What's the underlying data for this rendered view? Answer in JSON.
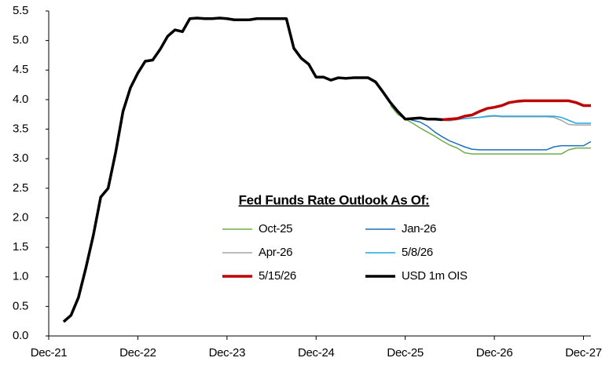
{
  "chart_data": {
    "type": "line",
    "legend_title": "Fed Funds Rate Outlook As Of:",
    "x": [
      "2022-02",
      "2022-03",
      "2022-04",
      "2022-05",
      "2022-06",
      "2022-07",
      "2022-08",
      "2022-09",
      "2022-10",
      "2022-11",
      "2022-12",
      "2023-01",
      "2023-02",
      "2023-03",
      "2023-04",
      "2023-05",
      "2023-06",
      "2023-07",
      "2023-08",
      "2023-09",
      "2023-10",
      "2023-11",
      "2023-12",
      "2024-01",
      "2024-02",
      "2024-03",
      "2024-04",
      "2024-05",
      "2024-06",
      "2024-07",
      "2024-08",
      "2024-09",
      "2024-10",
      "2024-11",
      "2024-12",
      "2025-01",
      "2025-02",
      "2025-03",
      "2025-04",
      "2025-05",
      "2025-06",
      "2025-07",
      "2025-08",
      "2025-09",
      "2025-10",
      "2025-11",
      "2025-12",
      "2026-01",
      "2026-02",
      "2026-03",
      "2026-04",
      "2026-05",
      "2026-06",
      "2026-07",
      "2026-08",
      "2026-09",
      "2026-10",
      "2026-11",
      "2026-12",
      "2027-01",
      "2027-02",
      "2027-03",
      "2027-04",
      "2027-05",
      "2027-06",
      "2027-07",
      "2027-08",
      "2027-09",
      "2027-10",
      "2027-11",
      "2027-12",
      "2028-01"
    ],
    "xlim": [
      "2021-12",
      "2028-01"
    ],
    "xticks": [
      {
        "value": "2021-12",
        "label": "Dec-21"
      },
      {
        "value": "2022-12",
        "label": "Dec-22"
      },
      {
        "value": "2023-12",
        "label": "Dec-23"
      },
      {
        "value": "2024-12",
        "label": "Dec-24"
      },
      {
        "value": "2025-12",
        "label": "Dec-25"
      },
      {
        "value": "2026-12",
        "label": "Dec-26"
      },
      {
        "value": "2027-12",
        "label": "Dec-27"
      }
    ],
    "ylim": [
      0,
      5.5
    ],
    "yticks": [
      {
        "value": 0,
        "label": "0.0"
      },
      0.5,
      {
        "value": 1,
        "label": "1.0"
      },
      1.5,
      {
        "value": 2,
        "label": "2.0"
      },
      2.5,
      {
        "value": 3,
        "label": "3.0"
      },
      3.5,
      {
        "value": 4,
        "label": "4.0"
      },
      4.5,
      {
        "value": 5,
        "label": "5.0"
      },
      5.5
    ],
    "grid": false,
    "series": [
      {
        "name": "Oct-25",
        "color": "#70ad47",
        "width": 1.5,
        "values": [
          null,
          null,
          null,
          null,
          null,
          null,
          null,
          null,
          null,
          null,
          null,
          null,
          null,
          null,
          null,
          null,
          null,
          null,
          null,
          null,
          null,
          null,
          null,
          null,
          null,
          null,
          null,
          null,
          null,
          null,
          null,
          null,
          null,
          null,
          null,
          null,
          null,
          null,
          null,
          null,
          null,
          null,
          null,
          null,
          3.9,
          3.75,
          3.67,
          3.6,
          3.52,
          3.45,
          3.38,
          3.3,
          3.23,
          3.18,
          3.1,
          3.08,
          3.08,
          3.08,
          3.08,
          3.08,
          3.08,
          3.08,
          3.08,
          3.08,
          3.08,
          3.08,
          3.08,
          3.08,
          3.15,
          3.18,
          3.18,
          3.18
        ]
      },
      {
        "name": "Jan-26",
        "color": "#1f6fbf",
        "width": 1.5,
        "values": [
          null,
          null,
          null,
          null,
          null,
          null,
          null,
          null,
          null,
          null,
          null,
          null,
          null,
          null,
          null,
          null,
          null,
          null,
          null,
          null,
          null,
          null,
          null,
          null,
          null,
          null,
          null,
          null,
          null,
          null,
          null,
          null,
          null,
          null,
          null,
          null,
          null,
          null,
          null,
          null,
          null,
          null,
          null,
          null,
          null,
          null,
          3.68,
          3.65,
          3.62,
          3.55,
          3.45,
          3.37,
          3.3,
          3.25,
          3.2,
          3.16,
          3.15,
          3.15,
          3.15,
          3.15,
          3.15,
          3.15,
          3.15,
          3.15,
          3.15,
          3.15,
          3.2,
          3.22,
          3.22,
          3.22,
          3.22,
          3.29
        ]
      },
      {
        "name": "Apr-26",
        "color": "#a6a6a6",
        "width": 1.5,
        "values": [
          null,
          null,
          null,
          null,
          null,
          null,
          null,
          null,
          null,
          null,
          null,
          null,
          null,
          null,
          null,
          null,
          null,
          null,
          null,
          null,
          null,
          null,
          null,
          null,
          null,
          null,
          null,
          null,
          null,
          null,
          null,
          null,
          null,
          null,
          null,
          null,
          null,
          null,
          null,
          null,
          null,
          null,
          null,
          null,
          null,
          null,
          null,
          null,
          null,
          null,
          3.67,
          3.65,
          3.64,
          3.66,
          3.68,
          3.69,
          3.7,
          3.71,
          3.72,
          3.71,
          3.71,
          3.71,
          3.71,
          3.71,
          3.71,
          3.71,
          3.7,
          3.65,
          3.58,
          3.57,
          3.57,
          3.57
        ]
      },
      {
        "name": "5/8/26",
        "color": "#1fa8e0",
        "width": 1.5,
        "values": [
          null,
          null,
          null,
          null,
          null,
          null,
          null,
          null,
          null,
          null,
          null,
          null,
          null,
          null,
          null,
          null,
          null,
          null,
          null,
          null,
          null,
          null,
          null,
          null,
          null,
          null,
          null,
          null,
          null,
          null,
          null,
          null,
          null,
          null,
          null,
          null,
          null,
          null,
          null,
          null,
          null,
          null,
          null,
          null,
          null,
          null,
          null,
          null,
          null,
          null,
          null,
          3.65,
          3.65,
          3.67,
          3.68,
          3.69,
          3.7,
          3.72,
          3.73,
          3.72,
          3.72,
          3.72,
          3.72,
          3.72,
          3.72,
          3.72,
          3.72,
          3.7,
          3.65,
          3.6,
          3.6,
          3.6
        ]
      },
      {
        "name": "5/15/26",
        "color": "#c00000",
        "width": 3.5,
        "values": [
          null,
          null,
          null,
          null,
          null,
          null,
          null,
          null,
          null,
          null,
          null,
          null,
          null,
          null,
          null,
          null,
          null,
          null,
          null,
          null,
          null,
          null,
          null,
          null,
          null,
          null,
          null,
          null,
          null,
          null,
          null,
          null,
          null,
          null,
          null,
          null,
          null,
          null,
          null,
          null,
          null,
          null,
          null,
          null,
          null,
          null,
          null,
          null,
          null,
          null,
          null,
          3.66,
          3.67,
          3.68,
          3.72,
          3.74,
          3.8,
          3.85,
          3.87,
          3.9,
          3.95,
          3.97,
          3.98,
          3.98,
          3.98,
          3.98,
          3.98,
          3.98,
          3.98,
          3.95,
          3.9,
          3.9
        ]
      },
      {
        "name": "USD 1m OIS",
        "color": "#000000",
        "width": 3.5,
        "values": [
          0.24,
          0.35,
          0.65,
          1.15,
          1.7,
          2.35,
          2.5,
          3.1,
          3.8,
          4.2,
          4.45,
          4.65,
          4.67,
          4.85,
          5.07,
          5.18,
          5.15,
          5.37,
          5.38,
          5.37,
          5.37,
          5.38,
          5.37,
          5.35,
          5.35,
          5.35,
          5.37,
          5.37,
          5.37,
          5.37,
          5.37,
          4.87,
          4.7,
          4.6,
          4.38,
          4.38,
          4.33,
          4.37,
          4.36,
          4.37,
          4.37,
          4.37,
          4.3,
          4.13,
          3.95,
          3.8,
          3.67,
          3.68,
          3.69,
          3.67,
          3.67,
          3.66,
          null,
          null,
          null,
          null,
          null,
          null,
          null,
          null,
          null,
          null,
          null,
          null,
          null,
          null,
          null,
          null,
          null,
          null,
          null,
          null
        ]
      }
    ]
  }
}
